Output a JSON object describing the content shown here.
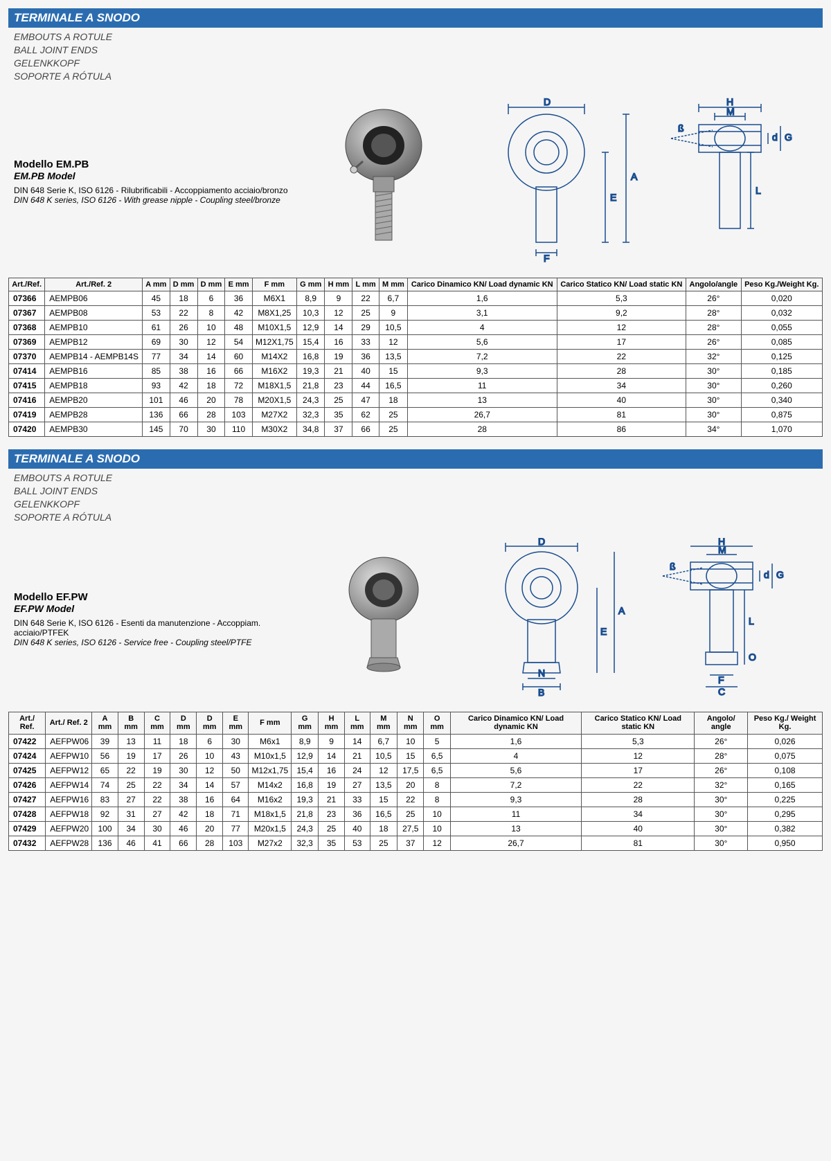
{
  "section1": {
    "title": "TERMINALE A SNODO",
    "subtitles": [
      "EMBOUTS A ROTULE",
      "BALL JOINT ENDS",
      "GELENKKOPF",
      "SOPORTE A RÓTULA"
    ],
    "model_name": "Modello EM.PB",
    "model_name_en": "EM.PB Model",
    "desc": "DIN 648 Serie K, ISO 6126 - Rilubrificabili - Accoppiamento acciaio/bronzo",
    "desc_en": "DIN 648 K series, ISO 6126 - With grease nipple - Coupling steel/bronze",
    "diagram_labels": [
      "D",
      "A",
      "E",
      "F",
      "H",
      "M",
      "d",
      "G",
      "ß",
      "L"
    ],
    "headers": [
      "Art./Ref.",
      "Art./Ref. 2",
      "A mm",
      "D mm",
      "D mm",
      "E mm",
      "F mm",
      "G mm",
      "H mm",
      "L mm",
      "M mm",
      "Carico Dinamico KN/ Load dynamic KN",
      "Carico Statico KN/ Load static KN",
      "Angolo/angle",
      "Peso Kg./Weight Kg."
    ],
    "rows": [
      [
        "07366",
        "AEMPB06",
        "45",
        "18",
        "6",
        "36",
        "M6X1",
        "8,9",
        "9",
        "22",
        "6,7",
        "1,6",
        "5,3",
        "26°",
        "0,020"
      ],
      [
        "07367",
        "AEMPB08",
        "53",
        "22",
        "8",
        "42",
        "M8X1,25",
        "10,3",
        "12",
        "25",
        "9",
        "3,1",
        "9,2",
        "28°",
        "0,032"
      ],
      [
        "07368",
        "AEMPB10",
        "61",
        "26",
        "10",
        "48",
        "M10X1,5",
        "12,9",
        "14",
        "29",
        "10,5",
        "4",
        "12",
        "28°",
        "0,055"
      ],
      [
        "07369",
        "AEMPB12",
        "69",
        "30",
        "12",
        "54",
        "M12X1,75",
        "15,4",
        "16",
        "33",
        "12",
        "5,6",
        "17",
        "26°",
        "0,085"
      ],
      [
        "07370",
        "AEMPB14 - AEMPB14S",
        "77",
        "34",
        "14",
        "60",
        "M14X2",
        "16,8",
        "19",
        "36",
        "13,5",
        "7,2",
        "22",
        "32°",
        "0,125"
      ],
      [
        "07414",
        "AEMPB16",
        "85",
        "38",
        "16",
        "66",
        "M16X2",
        "19,3",
        "21",
        "40",
        "15",
        "9,3",
        "28",
        "30°",
        "0,185"
      ],
      [
        "07415",
        "AEMPB18",
        "93",
        "42",
        "18",
        "72",
        "M18X1,5",
        "21,8",
        "23",
        "44",
        "16,5",
        "11",
        "34",
        "30°",
        "0,260"
      ],
      [
        "07416",
        "AEMPB20",
        "101",
        "46",
        "20",
        "78",
        "M20X1,5",
        "24,3",
        "25",
        "47",
        "18",
        "13",
        "40",
        "30°",
        "0,340"
      ],
      [
        "07419",
        "AEMPB28",
        "136",
        "66",
        "28",
        "103",
        "M27X2",
        "32,3",
        "35",
        "62",
        "25",
        "26,7",
        "81",
        "30°",
        "0,875"
      ],
      [
        "07420",
        "AEMPB30",
        "145",
        "70",
        "30",
        "110",
        "M30X2",
        "34,8",
        "37",
        "66",
        "25",
        "28",
        "86",
        "34°",
        "1,070"
      ]
    ]
  },
  "section2": {
    "title": "TERMINALE A SNODO",
    "subtitles": [
      "EMBOUTS A ROTULE",
      "BALL JOINT ENDS",
      "GELENKKOPF",
      "SOPORTE A RÓTULA"
    ],
    "model_name": "Modello EF.PW",
    "model_name_en": "EF.PW Model",
    "desc": "DIN 648 Serie K, ISO 6126 - Esenti da manutenzione - Accoppiam. acciaio/PTFEK",
    "desc_en": "DIN 648 K series, ISO 6126 - Service free - Coupling steel/PTFE",
    "diagram_labels": [
      "D",
      "A",
      "E",
      "B",
      "N",
      "H",
      "M",
      "d",
      "G",
      "ß",
      "L",
      "O",
      "F",
      "C"
    ],
    "headers": [
      "Art./ Ref.",
      "Art./ Ref. 2",
      "A mm",
      "B mm",
      "C mm",
      "D mm",
      "D mm",
      "E mm",
      "F mm",
      "G mm",
      "H mm",
      "L mm",
      "M mm",
      "N mm",
      "O mm",
      "Carico Dinamico KN/ Load dynamic KN",
      "Carico Statico KN/ Load static KN",
      "Angolo/ angle",
      "Peso Kg./ Weight Kg."
    ],
    "rows": [
      [
        "07422",
        "AEFPW06",
        "39",
        "13",
        "11",
        "18",
        "6",
        "30",
        "M6x1",
        "8,9",
        "9",
        "14",
        "6,7",
        "10",
        "5",
        "1,6",
        "5,3",
        "26°",
        "0,026"
      ],
      [
        "07424",
        "AEFPW10",
        "56",
        "19",
        "17",
        "26",
        "10",
        "43",
        "M10x1,5",
        "12,9",
        "14",
        "21",
        "10,5",
        "15",
        "6,5",
        "4",
        "12",
        "28°",
        "0,075"
      ],
      [
        "07425",
        "AEFPW12",
        "65",
        "22",
        "19",
        "30",
        "12",
        "50",
        "M12x1,75",
        "15,4",
        "16",
        "24",
        "12",
        "17,5",
        "6,5",
        "5,6",
        "17",
        "26°",
        "0,108"
      ],
      [
        "07426",
        "AEFPW14",
        "74",
        "25",
        "22",
        "34",
        "14",
        "57",
        "M14x2",
        "16,8",
        "19",
        "27",
        "13,5",
        "20",
        "8",
        "7,2",
        "22",
        "32°",
        "0,165"
      ],
      [
        "07427",
        "AEFPW16",
        "83",
        "27",
        "22",
        "38",
        "16",
        "64",
        "M16x2",
        "19,3",
        "21",
        "33",
        "15",
        "22",
        "8",
        "9,3",
        "28",
        "30°",
        "0,225"
      ],
      [
        "07428",
        "AEFPW18",
        "92",
        "31",
        "27",
        "42",
        "18",
        "71",
        "M18x1,5",
        "21,8",
        "23",
        "36",
        "16,5",
        "25",
        "10",
        "11",
        "34",
        "30°",
        "0,295"
      ],
      [
        "07429",
        "AEFPW20",
        "100",
        "34",
        "30",
        "46",
        "20",
        "77",
        "M20x1,5",
        "24,3",
        "25",
        "40",
        "18",
        "27,5",
        "10",
        "13",
        "40",
        "30°",
        "0,382"
      ],
      [
        "07432",
        "AEFPW28",
        "136",
        "46",
        "41",
        "66",
        "28",
        "103",
        "M27x2",
        "32,3",
        "35",
        "53",
        "25",
        "37",
        "12",
        "26,7",
        "81",
        "30°",
        "0,950"
      ]
    ]
  },
  "colors": {
    "bar": "#2b6cb0",
    "border": "#555",
    "drawing_stroke": "#1a4d8f",
    "photo_fill": "#888"
  }
}
